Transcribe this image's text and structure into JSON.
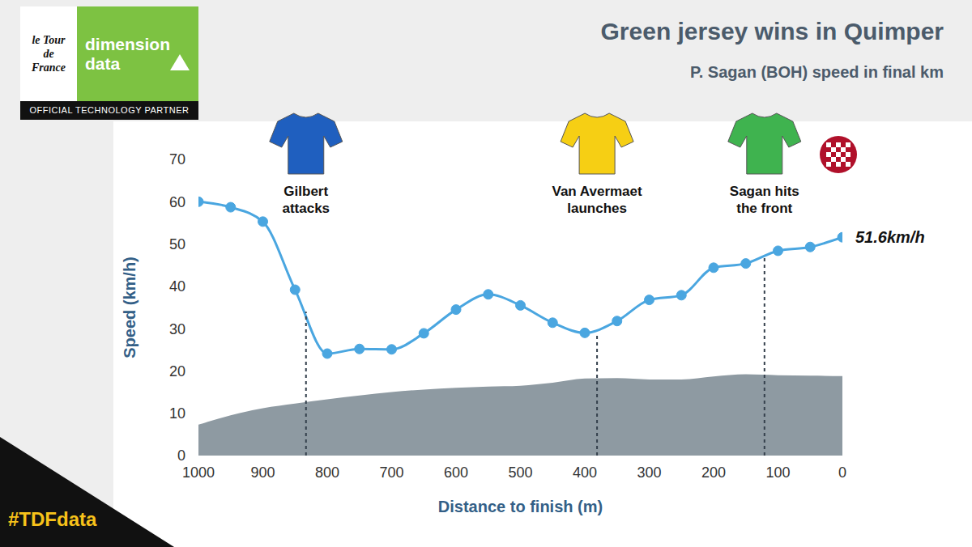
{
  "chart_data": {
    "type": "line",
    "title": "Green jersey wins in Quimper",
    "subtitle": "P. Sagan (BOH) speed in final km",
    "x_label": "Distance to finish (m)",
    "y_label": "Speed (km/h)",
    "x": [
      1000,
      950,
      900,
      850,
      800,
      750,
      700,
      650,
      600,
      550,
      500,
      450,
      400,
      350,
      300,
      250,
      200,
      150,
      100,
      50,
      0
    ],
    "series": [
      {
        "type": "area",
        "color": "#8e9aa2",
        "values": [
          7.3,
          9.5,
          11.2,
          12.3,
          13.3,
          14.2,
          15,
          15.6,
          16,
          16.3,
          16.5,
          17.2,
          18.2,
          18.3,
          18,
          18,
          18.7,
          19.2,
          19,
          18.9,
          18.8
        ]
      },
      {
        "type": "line",
        "color": "#4aa6e0",
        "marker": "circle",
        "values": [
          60,
          58.7,
          55.3,
          39.2,
          24.1,
          25.2,
          25.1,
          28.9,
          34.5,
          38.1,
          35.5,
          31.4,
          29,
          31.8,
          36.8,
          37.9,
          44.4,
          45.4,
          48.4,
          49.3,
          51.6
        ],
        "end_label": "51.6km/h"
      }
    ],
    "xlim": [
      1000,
      0
    ],
    "xticks": [
      1000,
      900,
      800,
      700,
      600,
      500,
      400,
      300,
      200,
      100,
      0
    ],
    "ylim": [
      0,
      70
    ],
    "yticks": [
      0,
      10,
      20,
      30,
      40,
      50,
      60,
      70
    ],
    "grid": false,
    "annotations": [
      {
        "text": "Gilbert attacks",
        "x": 833,
        "y": 34
      },
      {
        "text": "Van Avermaet launches",
        "x": 381,
        "y": 29
      },
      {
        "text": "Sagan hits the front",
        "x": 121,
        "y": 47
      }
    ],
    "logo": {
      "event": "le Tour de France",
      "partner": "dimension data",
      "tagline": "OFFICIAL TECHNOLOGY PARTNER"
    },
    "hashtag": "#TDFdata"
  }
}
